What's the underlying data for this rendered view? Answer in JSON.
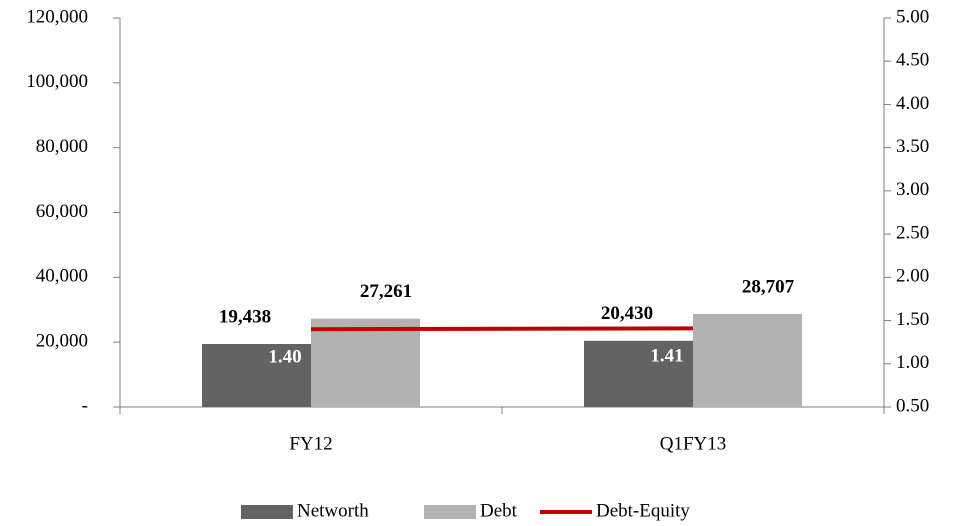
{
  "chart_data": {
    "type": "bar",
    "categories": [
      "FY12",
      "Q1FY13"
    ],
    "series": [
      {
        "name": "Networth",
        "color": "#636363",
        "values": [
          19438,
          20430
        ],
        "value_labels": [
          "19,438",
          "20,430"
        ]
      },
      {
        "name": "Debt",
        "color": "#b2b2b2",
        "values": [
          27261,
          28707
        ],
        "value_labels": [
          "27,261",
          "28,707"
        ]
      },
      {
        "name": "Debt-Equity",
        "type": "line",
        "axis": "y2",
        "color": "#c00000",
        "values": [
          1.4,
          1.41
        ],
        "value_labels": [
          "1.40",
          "1.41"
        ]
      }
    ],
    "ylim": [
      0,
      120000
    ],
    "yticks": [
      {
        "value": 0,
        "label": "-"
      },
      {
        "value": 20000,
        "label": "20,000"
      },
      {
        "value": 40000,
        "label": "40,000"
      },
      {
        "value": 60000,
        "label": "60,000"
      },
      {
        "value": 80000,
        "label": "80,000"
      },
      {
        "value": 100000,
        "label": "100,000"
      },
      {
        "value": 120000,
        "label": "120,000"
      }
    ],
    "y2lim": [
      0.5,
      5
    ],
    "y2ticks": [
      {
        "value": 0.5,
        "label": "0.50"
      },
      {
        "value": 1,
        "label": "1.00"
      },
      {
        "value": 1.5,
        "label": "1.50"
      },
      {
        "value": 2,
        "label": "2.00"
      },
      {
        "value": 2.5,
        "label": "2.50"
      },
      {
        "value": 3,
        "label": "3.00"
      },
      {
        "value": 3.5,
        "label": "3.50"
      },
      {
        "value": 4,
        "label": "4.00"
      },
      {
        "value": 4.5,
        "label": "4.50"
      },
      {
        "value": 5,
        "label": "5.00"
      }
    ],
    "legend": "bottom",
    "grid": false
  }
}
